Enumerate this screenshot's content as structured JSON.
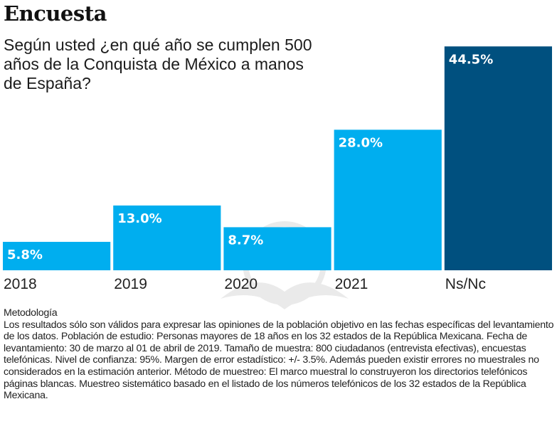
{
  "header": {
    "kicker": "Encuesta",
    "title": "Según usted ¿en qué año se cumplen 500 años de la Conquista de México a manos de España?"
  },
  "colors": {
    "primary_bar": "#00aeef",
    "highlight_bar": "#00507f"
  },
  "chart_data": {
    "type": "bar",
    "title": "Según usted ¿en qué año se cumplen 500 años de la Conquista de México a manos de España?",
    "xlabel": "",
    "ylabel": "",
    "categories": [
      "2018",
      "2019",
      "2020",
      "2021",
      "Ns/Nc"
    ],
    "values": [
      5.8,
      13.0,
      8.7,
      28.0,
      44.5
    ],
    "value_labels": [
      "5.8%",
      "13.0%",
      "8.7%",
      "28.0%",
      "44.5%"
    ],
    "highlight": [
      false,
      false,
      false,
      false,
      true
    ],
    "ylim": [
      0,
      44.5
    ],
    "grid": false,
    "legend": "none"
  },
  "notes": {
    "heading": "Metodología",
    "body": "Los resultados sólo son válidos para expresar las opiniones de la población objetivo en las fechas específicas del levantamiento de los datos. Población de estudio: Personas mayores de 18 años en los 32 estados de la República Mexicana. Fecha de levantamiento: 30 de marzo al 01 de abril de 2019. Tamaño de muestra: 800 ciudadanos (entrevista efectivas), encuestas telefónicas.  Nivel de confianza: 95%. Margen de error estadístico: +/- 3.5%. Además pueden existir errores no muestrales no considerados en la estimación anterior. Método de muestreo: El marco muestral lo construyeron los directorios telefónicos páginas blancas. Muestreo sistemático basado en el listado de los números telefónicos de los 32 estados de la República Mexicana."
  }
}
